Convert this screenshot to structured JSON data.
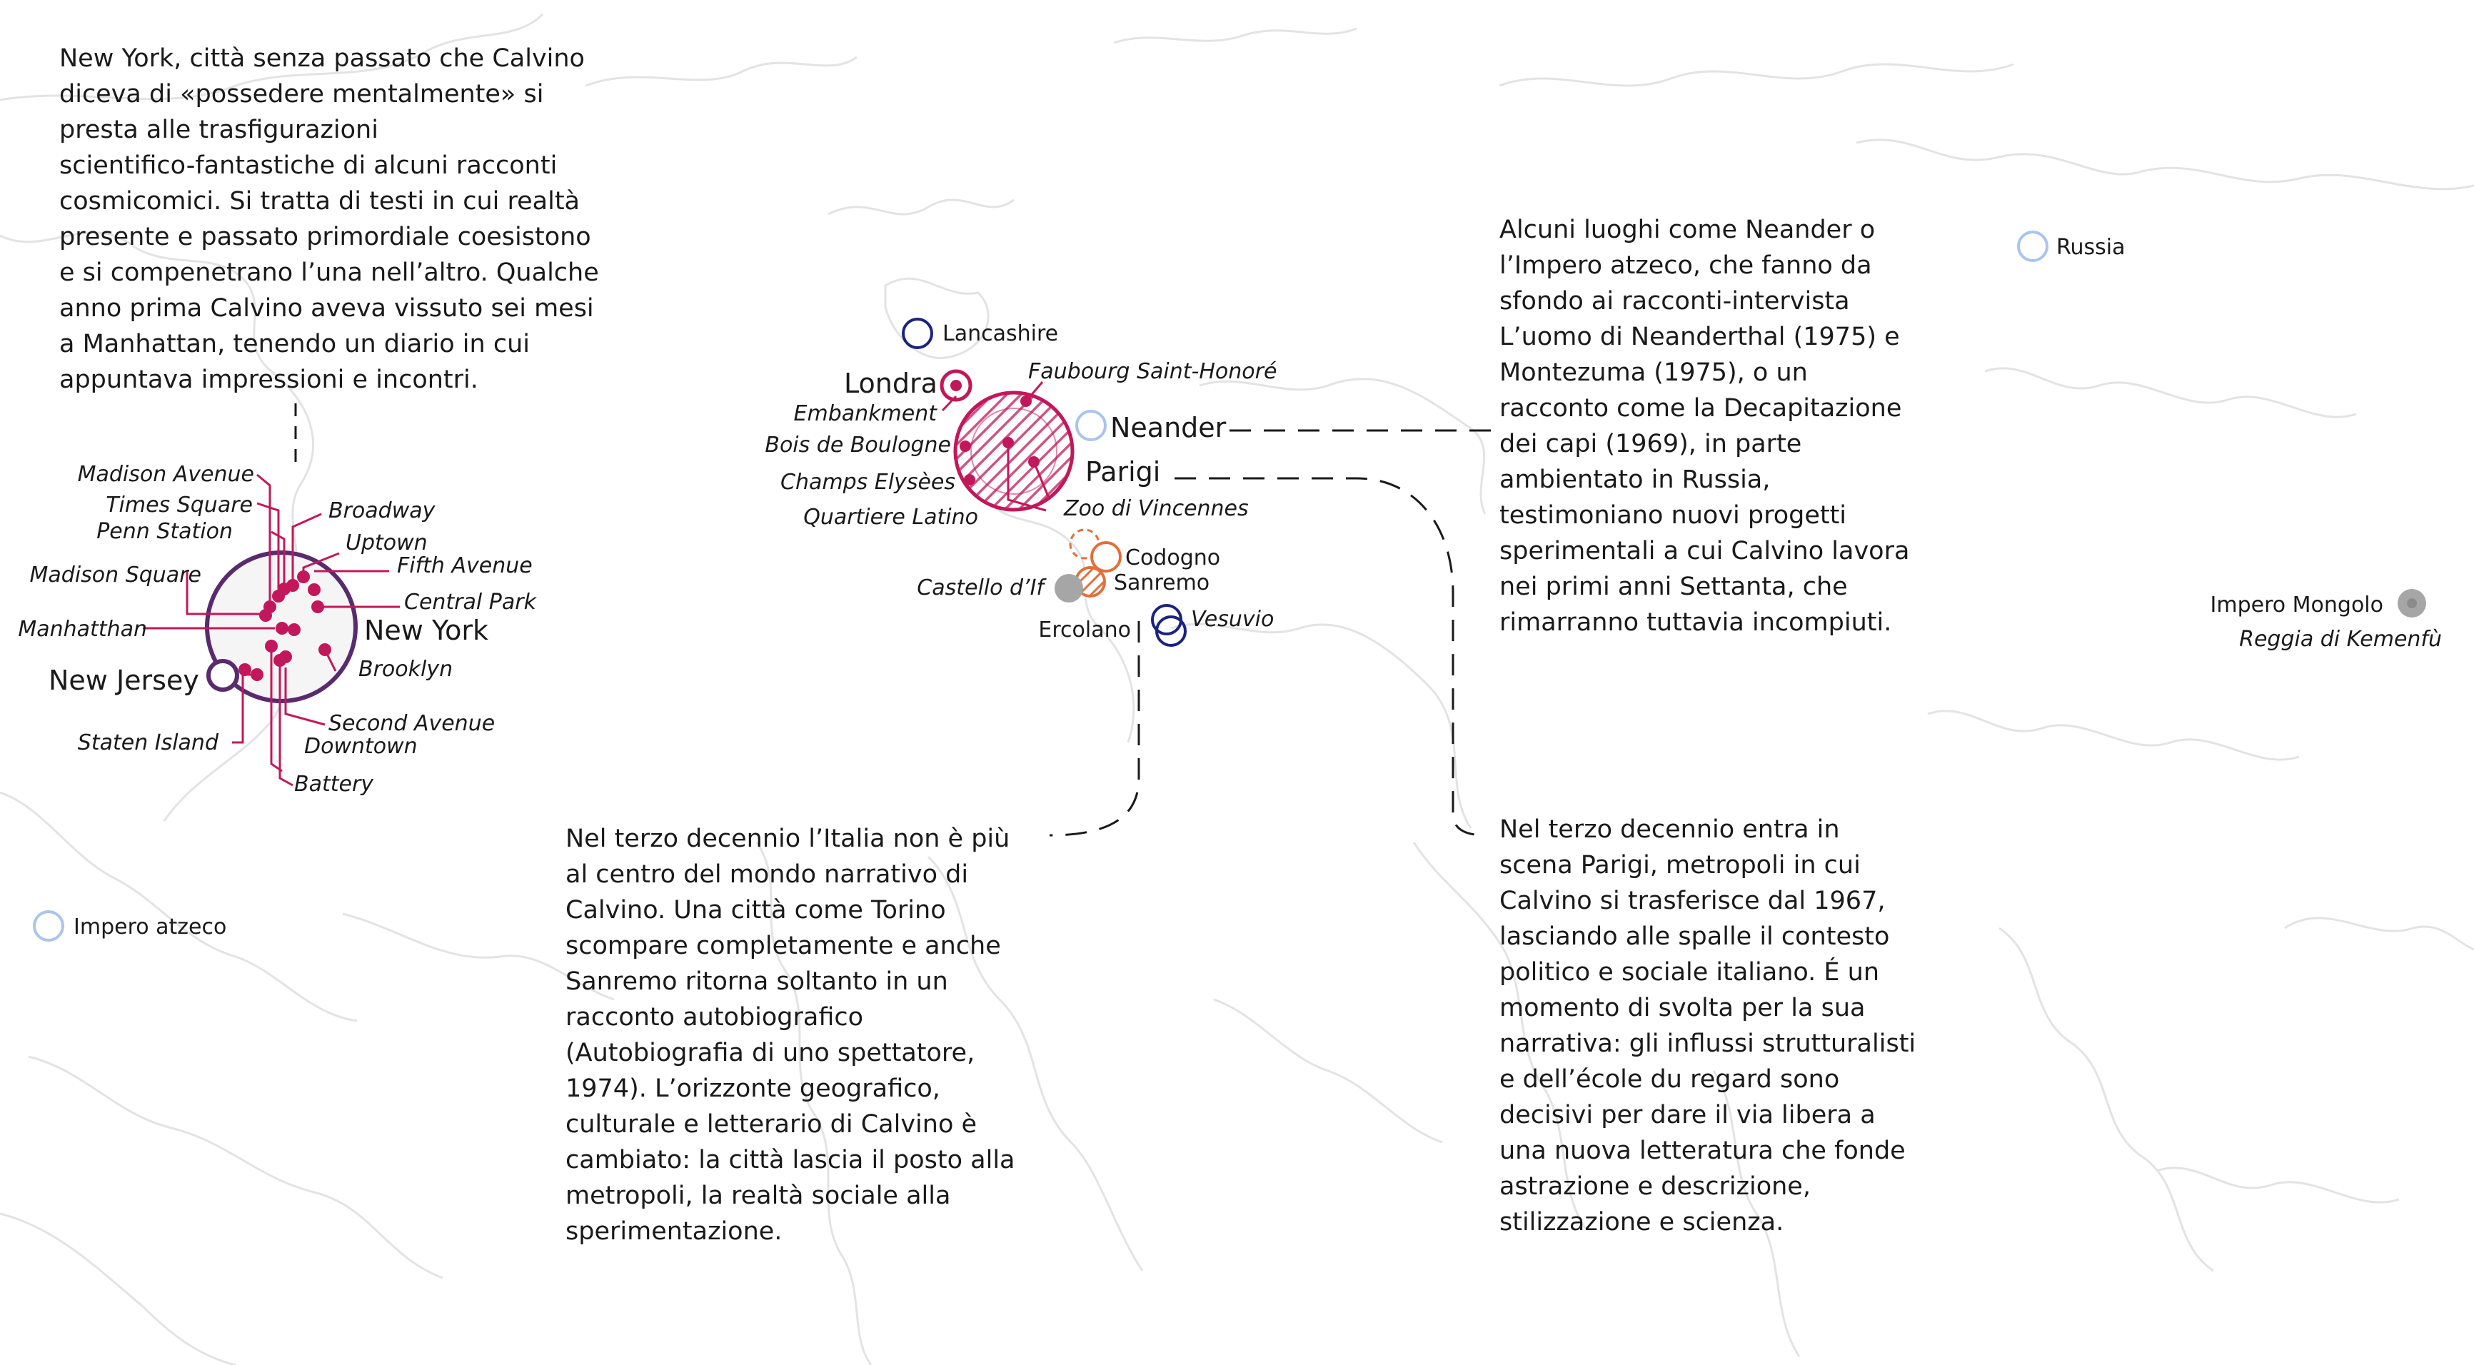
{
  "paragraphs": {
    "new_york": [
      "New York, città senza passato che Calvino",
      "diceva di «possedere mentalmente» si",
      "presta alle trasfigurazioni",
      "scientifico-fantastiche di alcuni racconti",
      "cosmicomici. Si tratta di testi in cui realtà",
      "presente e passato primordiale coesistono",
      "e si compenetrano l’una nell’altro. Qualche",
      "anno prima Calvino aveva vissuto sei mesi",
      "a Manhattan, tenendo un diario in cui",
      "appuntava impressioni e incontri."
    ],
    "italia": [
      "Nel terzo decennio l’Italia non è più",
      "al centro del mondo narrativo di",
      "Calvino. Una città come Torino",
      "scompare completamente e anche",
      "Sanremo ritorna soltanto in un",
      "racconto autobiografico",
      "(Autobiografia di uno spettatore,",
      "1974). L’orizzonte geografico,",
      "culturale e letterario di Calvino è",
      "cambiato: la città lascia il posto alla",
      "metropoli, la realtà sociale alla",
      "sperimentazione."
    ],
    "neander": [
      "Alcuni luoghi come Neander o",
      "l’Impero atzeco, che fanno da",
      "sfondo ai racconti-intervista",
      "L’uomo di Neanderthal (1975) e",
      "Montezuma (1975), o un",
      "racconto come la Decapitazione",
      "dei capi (1969), in parte",
      "ambientato in Russia,",
      "testimoniano nuovi progetti",
      "sperimentali a cui Calvino lavora",
      "nei primi anni Settanta, che",
      "rimarranno tuttavia incompiuti."
    ],
    "parigi": [
      "Nel terzo decennio entra in",
      "scena Parigi, metropoli in cui",
      "Calvino si trasferisce dal 1967,",
      "lasciando alle spalle il contesto",
      "politico e sociale italiano. É un",
      "momento di svolta per la sua",
      "narrativa: gli influssi strutturalisti",
      "e dell’école du regard sono",
      "decisivi per dare il via libera a",
      "una nuova letteratura che fonde",
      "astrazione e descrizione,",
      "stilizzazione e scienza."
    ]
  },
  "new_york_cluster": {
    "city": "New York",
    "new_jersey": "New Jersey",
    "places": {
      "madison_avenue": "Madison Avenue",
      "times_square": "Times Square",
      "penn_station": "Penn Station",
      "madison_square": "Madison Square",
      "manhattan": "Manhatthan",
      "staten_island": "Staten Island",
      "broadway": "Broadway",
      "uptown": "Uptown",
      "fifth_avenue": "Fifth Avenue",
      "central_park": "Central Park",
      "brooklyn": "Brooklyn",
      "second_avenue": "Second Avenue",
      "downtown": "Downtown",
      "battery": "Battery"
    }
  },
  "europe_cluster": {
    "lancashire": "Lancashire",
    "londra": "Londra",
    "embankment": "Embankment",
    "bois_de_boulogne": "Bois de Boulogne",
    "champs_elysees": "Champs Elysèes",
    "quartiere_latino": "Quartiere Latino",
    "faubourg": "Faubourg Saint-Honoré",
    "neander": "Neander",
    "parigi": "Parigi",
    "zoo": "Zoo di Vincennes",
    "codogno": "Codogno",
    "sanremo": "Sanremo",
    "castello": "Castello d’If",
    "ercolano": "Ercolano",
    "vesuvio": "Vesuvio"
  },
  "world_places": {
    "russia": "Russia",
    "impero_atzeco": "Impero atzeco",
    "impero_mongolo": "Impero Mongolo",
    "reggia": "Reggia di Kemenfù"
  },
  "colors": {
    "magenta": "#c2185b",
    "navy": "#1a237e",
    "orange": "#e0703a",
    "light_blue": "#a9c4ee",
    "gray": "#a6a6a6",
    "coast": "#e3e3e3",
    "text": "#1a1a1a"
  }
}
